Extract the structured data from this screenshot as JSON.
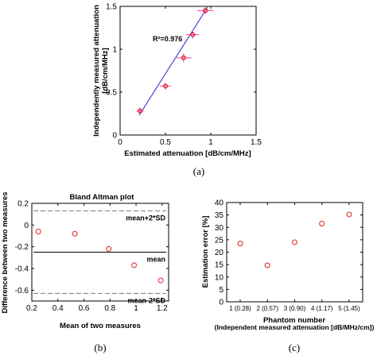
{
  "chart_data": [
    {
      "type": "scatter",
      "panel_label": "(a)",
      "xlabel": "Estimated attenuation [dB/cm/MHz]",
      "ylabel_lines": [
        "Independently measured attenuation",
        "[dB/cm/MHz]"
      ],
      "xlim": [
        0,
        1.5
      ],
      "ylim": [
        0,
        1.5
      ],
      "xticks": [
        0,
        0.5,
        1,
        1.5
      ],
      "xtick_labels": [
        "0",
        "0.5",
        "1",
        "1.5"
      ],
      "yticks": [
        0,
        0.5,
        1,
        1.5
      ],
      "ytick_labels": [
        "0",
        "0.5",
        "1",
        "1.5"
      ],
      "annotation": "R²=0.976",
      "points": [
        {
          "x": 0.22,
          "y": 0.28,
          "xerr": 0.04,
          "yerr": 0.04
        },
        {
          "x": 0.5,
          "y": 0.57,
          "xerr": 0.06,
          "yerr": 0.04
        },
        {
          "x": 0.7,
          "y": 0.9,
          "xerr": 0.09,
          "yerr": 0.05
        },
        {
          "x": 0.8,
          "y": 1.17,
          "xerr": 0.07,
          "yerr": 0.05
        },
        {
          "x": 0.94,
          "y": 1.45,
          "xerr": 0.09,
          "yerr": 0.04
        }
      ],
      "fit_line": {
        "x": [
          0.21,
          0.97
        ],
        "y": [
          0.23,
          1.5
        ],
        "color": "#3a3acd"
      },
      "marker_color": "#cc1a1a",
      "errorbar_color": "#ff55aa"
    },
    {
      "type": "scatter",
      "panel_label": "(b)",
      "title": "Bland Altman plot",
      "xlabel": "Mean of two measures",
      "ylabel_lines": [
        "Difference between two measures"
      ],
      "xlim": [
        0.2,
        1.25
      ],
      "ylim": [
        -0.7,
        0.2
      ],
      "xticks": [
        0.2,
        0.4,
        0.6,
        0.8,
        1,
        1.2
      ],
      "xtick_labels": [
        "0.2",
        "0.4",
        "0.6",
        "0.8",
        "1",
        "1.2"
      ],
      "yticks": [
        -0.6,
        -0.4,
        -0.2,
        0,
        0.2
      ],
      "ytick_labels": [
        "-0.6",
        "-0.4",
        "-0.2",
        "0",
        "0.2"
      ],
      "points": [
        {
          "x": 0.25,
          "y": -0.06
        },
        {
          "x": 0.53,
          "y": -0.08
        },
        {
          "x": 0.79,
          "y": -0.22
        },
        {
          "x": 0.985,
          "y": -0.37
        },
        {
          "x": 1.19,
          "y": -0.51
        }
      ],
      "hlines": [
        {
          "y": 0.13,
          "label": "mean+2*SD",
          "style": "dashed",
          "color": "#888888"
        },
        {
          "y": -0.25,
          "label": "mean",
          "style": "solid",
          "color": "#000000"
        },
        {
          "y": -0.63,
          "label": "mean-2*SD",
          "style": "dashed",
          "color": "#888888"
        }
      ],
      "marker_color": "#e03030"
    },
    {
      "type": "scatter",
      "panel_label": "(c)",
      "xlabel_lines": [
        "Phantom number",
        "(Independent measured attenuation [dB/MHz/cm])"
      ],
      "ylabel_lines": [
        "Estimation error [%]"
      ],
      "ylim": [
        0,
        40
      ],
      "yticks": [
        0,
        5,
        10,
        15,
        20,
        25,
        30,
        35,
        40
      ],
      "ytick_labels": [
        "0",
        "5",
        "10",
        "15",
        "20",
        "25",
        "30",
        "35",
        "40"
      ],
      "categories": [
        "1 (0.28)",
        "2 (0.57)",
        "3 (0.90)",
        "4 (1.17)",
        "5 (1.45)"
      ],
      "values": [
        23.5,
        14.7,
        24.0,
        31.5,
        35.2
      ],
      "marker_color": "#e03030"
    }
  ]
}
